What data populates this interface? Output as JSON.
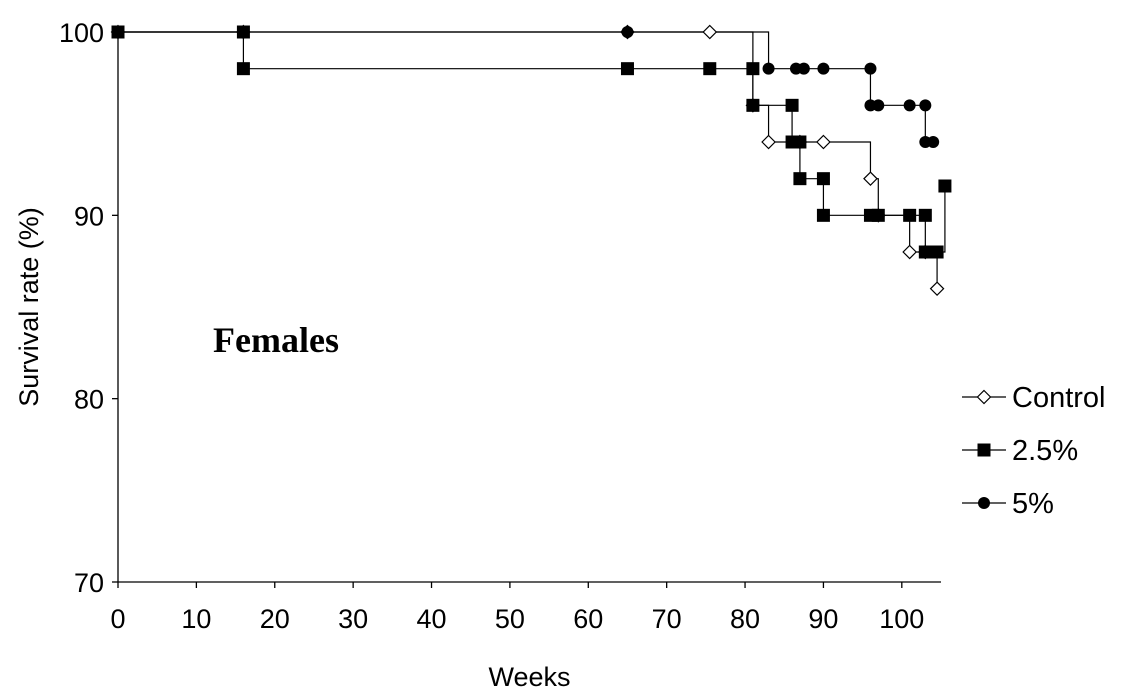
{
  "chart_data": {
    "type": "line",
    "step": true,
    "xlabel": "Weeks",
    "ylabel": "Survival rate (%)",
    "xlim": [
      0,
      105
    ],
    "ylim": [
      70,
      100
    ],
    "x_ticks": [
      0,
      10,
      20,
      30,
      40,
      50,
      60,
      70,
      80,
      90,
      100
    ],
    "y_ticks": [
      70,
      80,
      90,
      100
    ],
    "grid": false,
    "legend_position": "right",
    "annotation": "Females",
    "series": [
      {
        "name": "Control",
        "marker": "diamond-open",
        "x": [
          0,
          16,
          65,
          75.5,
          81,
          83,
          87,
          90,
          96,
          97,
          101,
          103,
          104.5
        ],
        "y": [
          100,
          100,
          100,
          100,
          96,
          94,
          94,
          94,
          92,
          90,
          88,
          88,
          86
        ]
      },
      {
        "name": "2.5%",
        "marker": "square-filled",
        "x": [
          0,
          16,
          16,
          65,
          75.5,
          81,
          81,
          86,
          86,
          87,
          87,
          90,
          90,
          96,
          97,
          101,
          103,
          103,
          104.5,
          105.5
        ],
        "y": [
          100,
          100,
          98,
          98,
          98,
          98,
          96,
          96,
          94,
          94,
          92,
          92,
          90,
          90,
          90,
          90,
          90,
          88,
          88,
          91.6
        ]
      },
      {
        "name": "5%",
        "marker": "circle-filled",
        "x": [
          0,
          65,
          83,
          86.5,
          87.5,
          90,
          96,
          96,
          97,
          101,
          103,
          103,
          104
        ],
        "y": [
          100,
          100,
          98,
          98,
          98,
          98,
          98,
          96,
          96,
          96,
          96,
          94,
          94
        ]
      }
    ]
  }
}
